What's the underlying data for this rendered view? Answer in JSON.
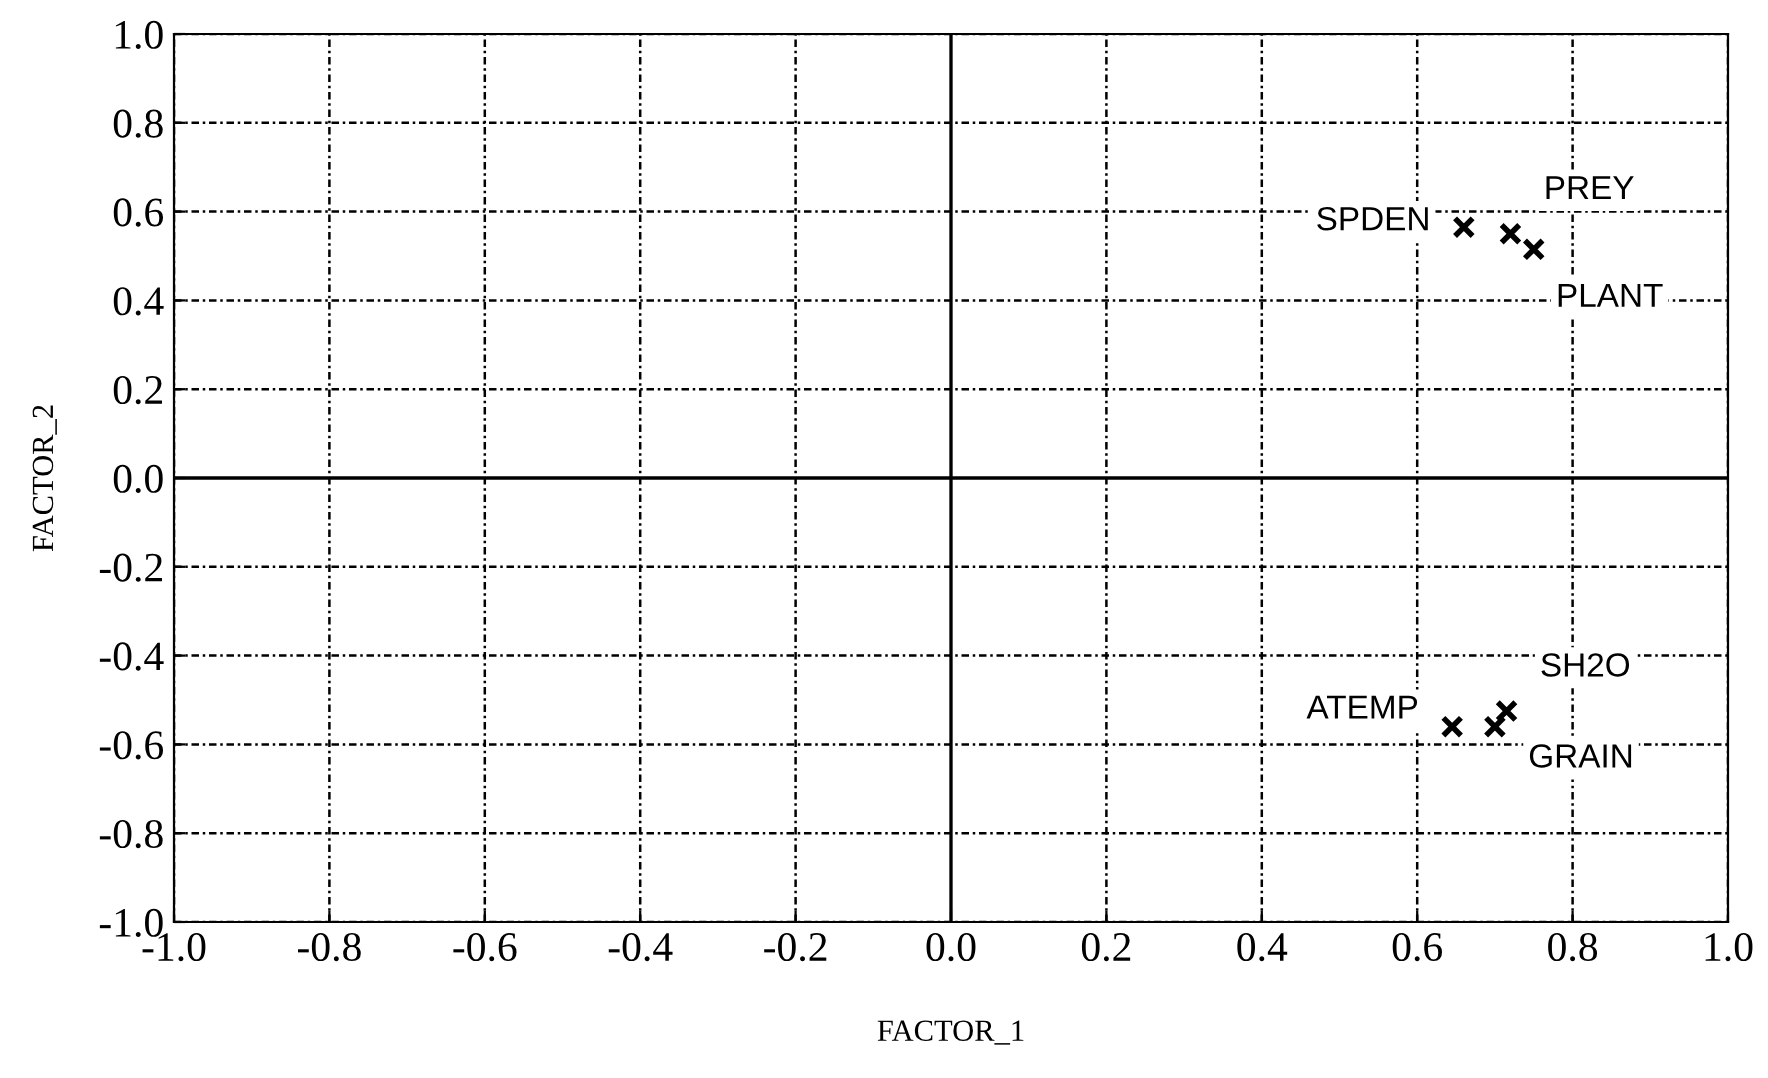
{
  "chart_data": {
    "type": "scatter",
    "xlabel": "FACTOR_1",
    "ylabel": "FACTOR_2",
    "x": [
      0.66,
      0.72,
      0.75,
      0.645,
      0.715,
      0.7
    ],
    "series": [
      {
        "color": "#000000",
        "values": [
          0.565,
          0.55,
          0.515,
          -0.56,
          -0.525,
          -0.56
        ]
      }
    ],
    "marker": "cross",
    "grid": true,
    "legend": false,
    "xlim": [
      -1.0,
      1.0
    ],
    "ylim": [
      -1.0,
      1.0
    ],
    "xticks": [
      {
        "value": -1,
        "label": "-1.0"
      },
      {
        "value": -0.8,
        "label": "-0.8"
      },
      {
        "value": -0.6,
        "label": "-0.6"
      },
      {
        "value": -0.4,
        "label": "-0.4"
      },
      {
        "value": -0.2,
        "label": "-0.2"
      },
      {
        "value": 0,
        "label": "0.0"
      },
      {
        "value": 0.2,
        "label": "0.2"
      },
      {
        "value": 0.4,
        "label": "0.4"
      },
      {
        "value": 0.6,
        "label": "0.6"
      },
      {
        "value": 0.8,
        "label": "0.8"
      },
      {
        "value": 1,
        "label": "1.0"
      }
    ],
    "yticks": [
      {
        "value": -1,
        "label": "-1.0"
      },
      {
        "value": -0.8,
        "label": "-0.8"
      },
      {
        "value": -0.6,
        "label": "-0.6"
      },
      {
        "value": -0.4,
        "label": "-0.4"
      },
      {
        "value": -0.2,
        "label": "-0.2"
      },
      {
        "value": 0,
        "label": "0.0"
      },
      {
        "value": 0.2,
        "label": "0.2"
      },
      {
        "value": 0.4,
        "label": "0.4"
      },
      {
        "value": 0.6,
        "label": "0.6"
      },
      {
        "value": 0.8,
        "label": "0.8"
      },
      {
        "value": 1,
        "label": "1.0"
      }
    ],
    "annotations": [
      {
        "text": "SPDEN",
        "x": 0.66,
        "y": 0.565
      },
      {
        "text": "PREY",
        "x": 0.72,
        "y": 0.55
      },
      {
        "text": "PLANT",
        "x": 0.75,
        "y": 0.515
      },
      {
        "text": "ATEMP",
        "x": 0.645,
        "y": -0.56
      },
      {
        "text": "SH2O",
        "x": 0.715,
        "y": -0.525
      },
      {
        "text": "GRAIN",
        "x": 0.7,
        "y": -0.56
      }
    ]
  }
}
